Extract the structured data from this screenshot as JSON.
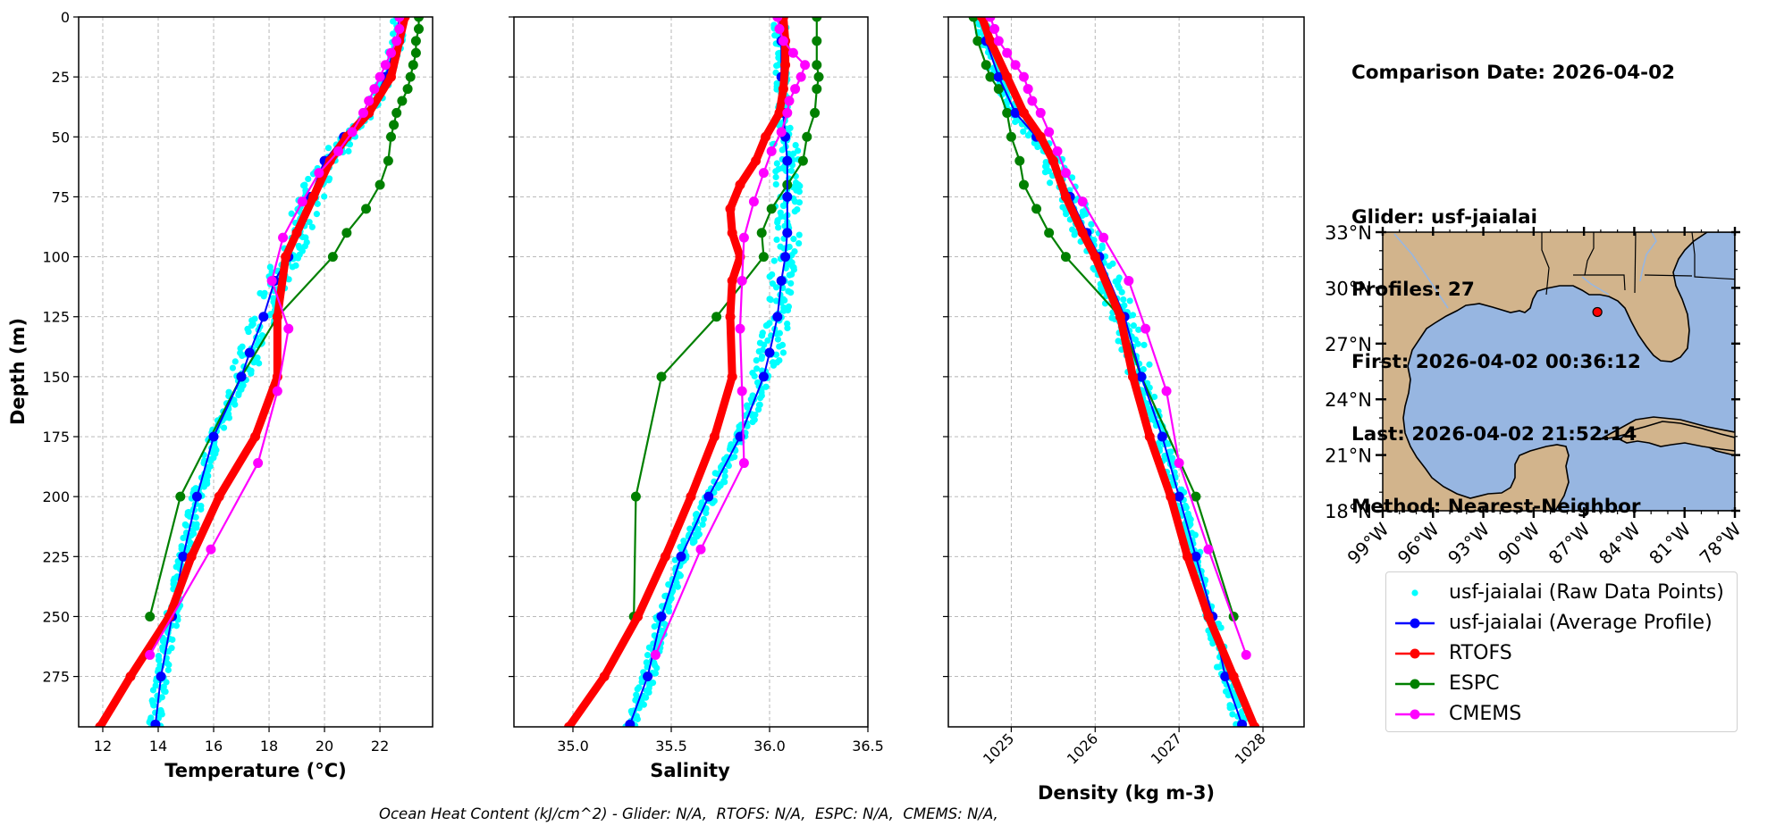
{
  "info": {
    "comparison_date": "Comparison Date: 2026-04-02",
    "glider": "Glider: usf-jaialai",
    "profiles": "Profiles: 27",
    "first": "First: 2026-04-02 00:36:12",
    "last": "Last: 2026-04-02 21:52:14",
    "method": "Method: Nearest-Neighbor"
  },
  "footer": "Ocean Heat Content (kJ/cm^2) - Glider: N/A,  RTOFS: N/A,  ESPC: N/A,  CMEMS: N/A,",
  "colors": {
    "raw": "#00ffff",
    "glider": "#0000ff",
    "rtofs": "#ff0000",
    "espc": "#008000",
    "cmems": "#ff00ff",
    "land": "#d2b48c",
    "ocean": "#97b6e1",
    "rivers": "#97b6e1",
    "grid": "#b0b0b0"
  },
  "legend": [
    {
      "key": "raw",
      "label": "usf-jaialai (Raw Data Points)",
      "style": "dot"
    },
    {
      "key": "glider",
      "label": "usf-jaialai (Average Profile)",
      "style": "line-marker"
    },
    {
      "key": "rtofs",
      "label": "RTOFS",
      "style": "line-marker"
    },
    {
      "key": "espc",
      "label": "ESPC",
      "style": "line-marker"
    },
    {
      "key": "cmems",
      "label": "CMEMS",
      "style": "line-marker"
    }
  ],
  "chart_data": [
    {
      "type": "line",
      "title": "",
      "xlabel": "Temperature (°C)",
      "ylabel": "Depth (m)",
      "xlim": [
        11.13,
        23.9
      ],
      "ylim": [
        296,
        0
      ],
      "xticks": [
        12,
        14,
        16,
        18,
        20,
        22
      ],
      "yticks": [
        0,
        25,
        50,
        75,
        100,
        125,
        150,
        175,
        200,
        225,
        250,
        275
      ],
      "grid": true,
      "series": [
        {
          "name": "usf-jaialai (Average Profile)",
          "key": "glider",
          "depth": [
            0,
            10,
            25,
            40,
            50,
            60,
            75,
            90,
            100,
            110,
            125,
            140,
            150,
            175,
            200,
            225,
            250,
            275,
            295
          ],
          "values": [
            22.7,
            22.6,
            22.2,
            21.6,
            20.7,
            20.0,
            19.5,
            19.0,
            18.7,
            18.2,
            17.8,
            17.3,
            17.0,
            16.0,
            15.4,
            14.9,
            14.5,
            14.1,
            13.9
          ]
        },
        {
          "name": "RTOFS",
          "key": "rtofs",
          "depth": [
            0,
            10,
            25,
            40,
            50,
            60,
            75,
            90,
            100,
            125,
            150,
            175,
            200,
            225,
            250,
            275,
            296
          ],
          "values": [
            22.9,
            22.7,
            22.4,
            21.6,
            20.8,
            20.2,
            19.6,
            19.0,
            18.6,
            18.3,
            18.3,
            17.5,
            16.2,
            15.2,
            14.4,
            13.0,
            11.9
          ]
        },
        {
          "name": "ESPC",
          "key": "espc",
          "depth": [
            0,
            5,
            10,
            15,
            20,
            25,
            30,
            35,
            40,
            45,
            50,
            60,
            70,
            80,
            90,
            100,
            125,
            150,
            200,
            250
          ],
          "values": [
            23.4,
            23.4,
            23.3,
            23.3,
            23.2,
            23.1,
            23.0,
            22.8,
            22.6,
            22.5,
            22.4,
            22.3,
            22.0,
            21.5,
            20.8,
            20.3,
            18.3,
            17.0,
            14.8,
            13.7
          ]
        },
        {
          "name": "CMEMS",
          "key": "cmems",
          "depth": [
            0,
            5,
            10,
            15,
            20,
            25,
            30,
            35,
            40,
            48,
            56,
            65,
            77,
            92,
            110,
            130,
            156,
            186,
            222,
            266
          ],
          "values": [
            22.7,
            22.7,
            22.6,
            22.4,
            22.2,
            22.0,
            21.8,
            21.6,
            21.4,
            21.0,
            20.5,
            19.8,
            19.2,
            18.5,
            18.1,
            18.7,
            18.3,
            17.6,
            15.9,
            13.7
          ]
        }
      ]
    },
    {
      "type": "line",
      "title": "",
      "xlabel": "Salinity",
      "ylabel": "",
      "xlim": [
        34.7,
        36.5
      ],
      "ylim": [
        296,
        0
      ],
      "xticks": [
        35.0,
        35.5,
        36.0,
        36.5
      ],
      "xtick_labels": [
        "35.0",
        "35.5",
        "36.0",
        "36.5"
      ],
      "yticks": [
        0,
        25,
        50,
        75,
        100,
        125,
        150,
        175,
        200,
        225,
        250,
        275
      ],
      "grid": true,
      "series": [
        {
          "name": "usf-jaialai (Average Profile)",
          "key": "glider",
          "depth": [
            0,
            10,
            25,
            40,
            50,
            60,
            75,
            90,
            100,
            110,
            125,
            140,
            150,
            175,
            200,
            225,
            250,
            275,
            295
          ],
          "values": [
            36.05,
            36.06,
            36.06,
            36.07,
            36.08,
            36.09,
            36.09,
            36.09,
            36.08,
            36.06,
            36.04,
            36.0,
            35.97,
            35.85,
            35.69,
            35.55,
            35.45,
            35.38,
            35.29
          ]
        },
        {
          "name": "RTOFS",
          "key": "rtofs",
          "depth": [
            0,
            10,
            20,
            30,
            40,
            50,
            60,
            70,
            80,
            90,
            100,
            110,
            125,
            150,
            175,
            200,
            225,
            250,
            275,
            296
          ],
          "values": [
            36.07,
            36.08,
            36.08,
            36.07,
            36.05,
            35.98,
            35.93,
            35.85,
            35.8,
            35.81,
            35.85,
            35.81,
            35.8,
            35.81,
            35.72,
            35.6,
            35.47,
            35.33,
            35.16,
            34.98
          ]
        },
        {
          "name": "ESPC",
          "key": "espc",
          "depth": [
            0,
            10,
            20,
            25,
            30,
            40,
            50,
            60,
            70,
            80,
            90,
            100,
            125,
            150,
            200,
            250
          ],
          "values": [
            36.24,
            36.24,
            36.24,
            36.25,
            36.24,
            36.23,
            36.19,
            36.17,
            36.09,
            36.01,
            35.96,
            35.97,
            35.73,
            35.45,
            35.32,
            35.31
          ]
        },
        {
          "name": "CMEMS",
          "key": "cmems",
          "depth": [
            0,
            5,
            10,
            15,
            20,
            25,
            30,
            35,
            40,
            48,
            56,
            65,
            77,
            92,
            110,
            130,
            156,
            186,
            222,
            266
          ],
          "values": [
            36.04,
            36.05,
            36.07,
            36.12,
            36.18,
            36.16,
            36.13,
            36.1,
            36.09,
            36.06,
            36.01,
            35.97,
            35.92,
            35.87,
            35.86,
            35.85,
            35.86,
            35.87,
            35.65,
            35.42
          ]
        }
      ]
    },
    {
      "type": "line",
      "title": "",
      "xlabel": "Density (kg m-3)",
      "ylabel": "",
      "xlim": [
        1024.25,
        1028.49
      ],
      "ylim": [
        296,
        0
      ],
      "xticks": [
        1025,
        1026,
        1027,
        1028
      ],
      "yticks": [
        0,
        25,
        50,
        75,
        100,
        125,
        150,
        175,
        200,
        225,
        250,
        275
      ],
      "grid": true,
      "series": [
        {
          "name": "usf-jaialai (Average Profile)",
          "key": "glider",
          "depth": [
            0,
            10,
            25,
            40,
            50,
            60,
            75,
            90,
            100,
            125,
            150,
            175,
            200,
            225,
            250,
            275,
            295
          ],
          "values": [
            1024.65,
            1024.7,
            1024.85,
            1025.05,
            1025.3,
            1025.5,
            1025.7,
            1025.9,
            1026.05,
            1026.35,
            1026.55,
            1026.8,
            1027.0,
            1027.2,
            1027.4,
            1027.55,
            1027.75
          ]
        },
        {
          "name": "RTOFS",
          "key": "rtofs",
          "depth": [
            0,
            10,
            25,
            40,
            50,
            60,
            75,
            90,
            100,
            125,
            150,
            175,
            200,
            225,
            250,
            275,
            296
          ],
          "values": [
            1024.65,
            1024.75,
            1024.95,
            1025.15,
            1025.35,
            1025.5,
            1025.65,
            1025.85,
            1026.0,
            1026.3,
            1026.45,
            1026.65,
            1026.9,
            1027.1,
            1027.35,
            1027.65,
            1027.9
          ]
        },
        {
          "name": "ESPC",
          "key": "espc",
          "depth": [
            0,
            10,
            20,
            25,
            30,
            40,
            50,
            60,
            70,
            80,
            90,
            100,
            125,
            150,
            200,
            250
          ],
          "values": [
            1024.55,
            1024.6,
            1024.7,
            1024.75,
            1024.85,
            1024.95,
            1025.0,
            1025.1,
            1025.15,
            1025.3,
            1025.45,
            1025.65,
            1026.3,
            1026.55,
            1027.2,
            1027.65
          ]
        },
        {
          "name": "CMEMS",
          "key": "cmems",
          "depth": [
            0,
            5,
            10,
            15,
            20,
            25,
            30,
            35,
            40,
            48,
            56,
            65,
            77,
            92,
            110,
            130,
            156,
            186,
            222,
            266
          ],
          "values": [
            1024.75,
            1024.8,
            1024.85,
            1024.95,
            1025.05,
            1025.15,
            1025.2,
            1025.25,
            1025.35,
            1025.45,
            1025.55,
            1025.65,
            1025.85,
            1026.1,
            1026.4,
            1026.6,
            1026.85,
            1027.0,
            1027.35,
            1027.8
          ]
        }
      ]
    }
  ],
  "map": {
    "lon_range": [
      -99,
      -78
    ],
    "lat_range": [
      18,
      33
    ],
    "lon_ticks": [
      -99,
      -96,
      -93,
      -90,
      -87,
      -84,
      -81,
      -78
    ],
    "lon_tick_labels": [
      "99°W",
      "96°W",
      "93°W",
      "90°W",
      "87°W",
      "84°W",
      "81°W",
      "78°W"
    ],
    "lat_ticks": [
      18,
      21,
      24,
      27,
      30,
      33
    ],
    "lat_tick_labels": [
      "18°N",
      "21°N",
      "24°N",
      "27°N",
      "30°N",
      "33°N"
    ],
    "glider_location": {
      "lon": -86.2,
      "lat": 28.7
    }
  }
}
